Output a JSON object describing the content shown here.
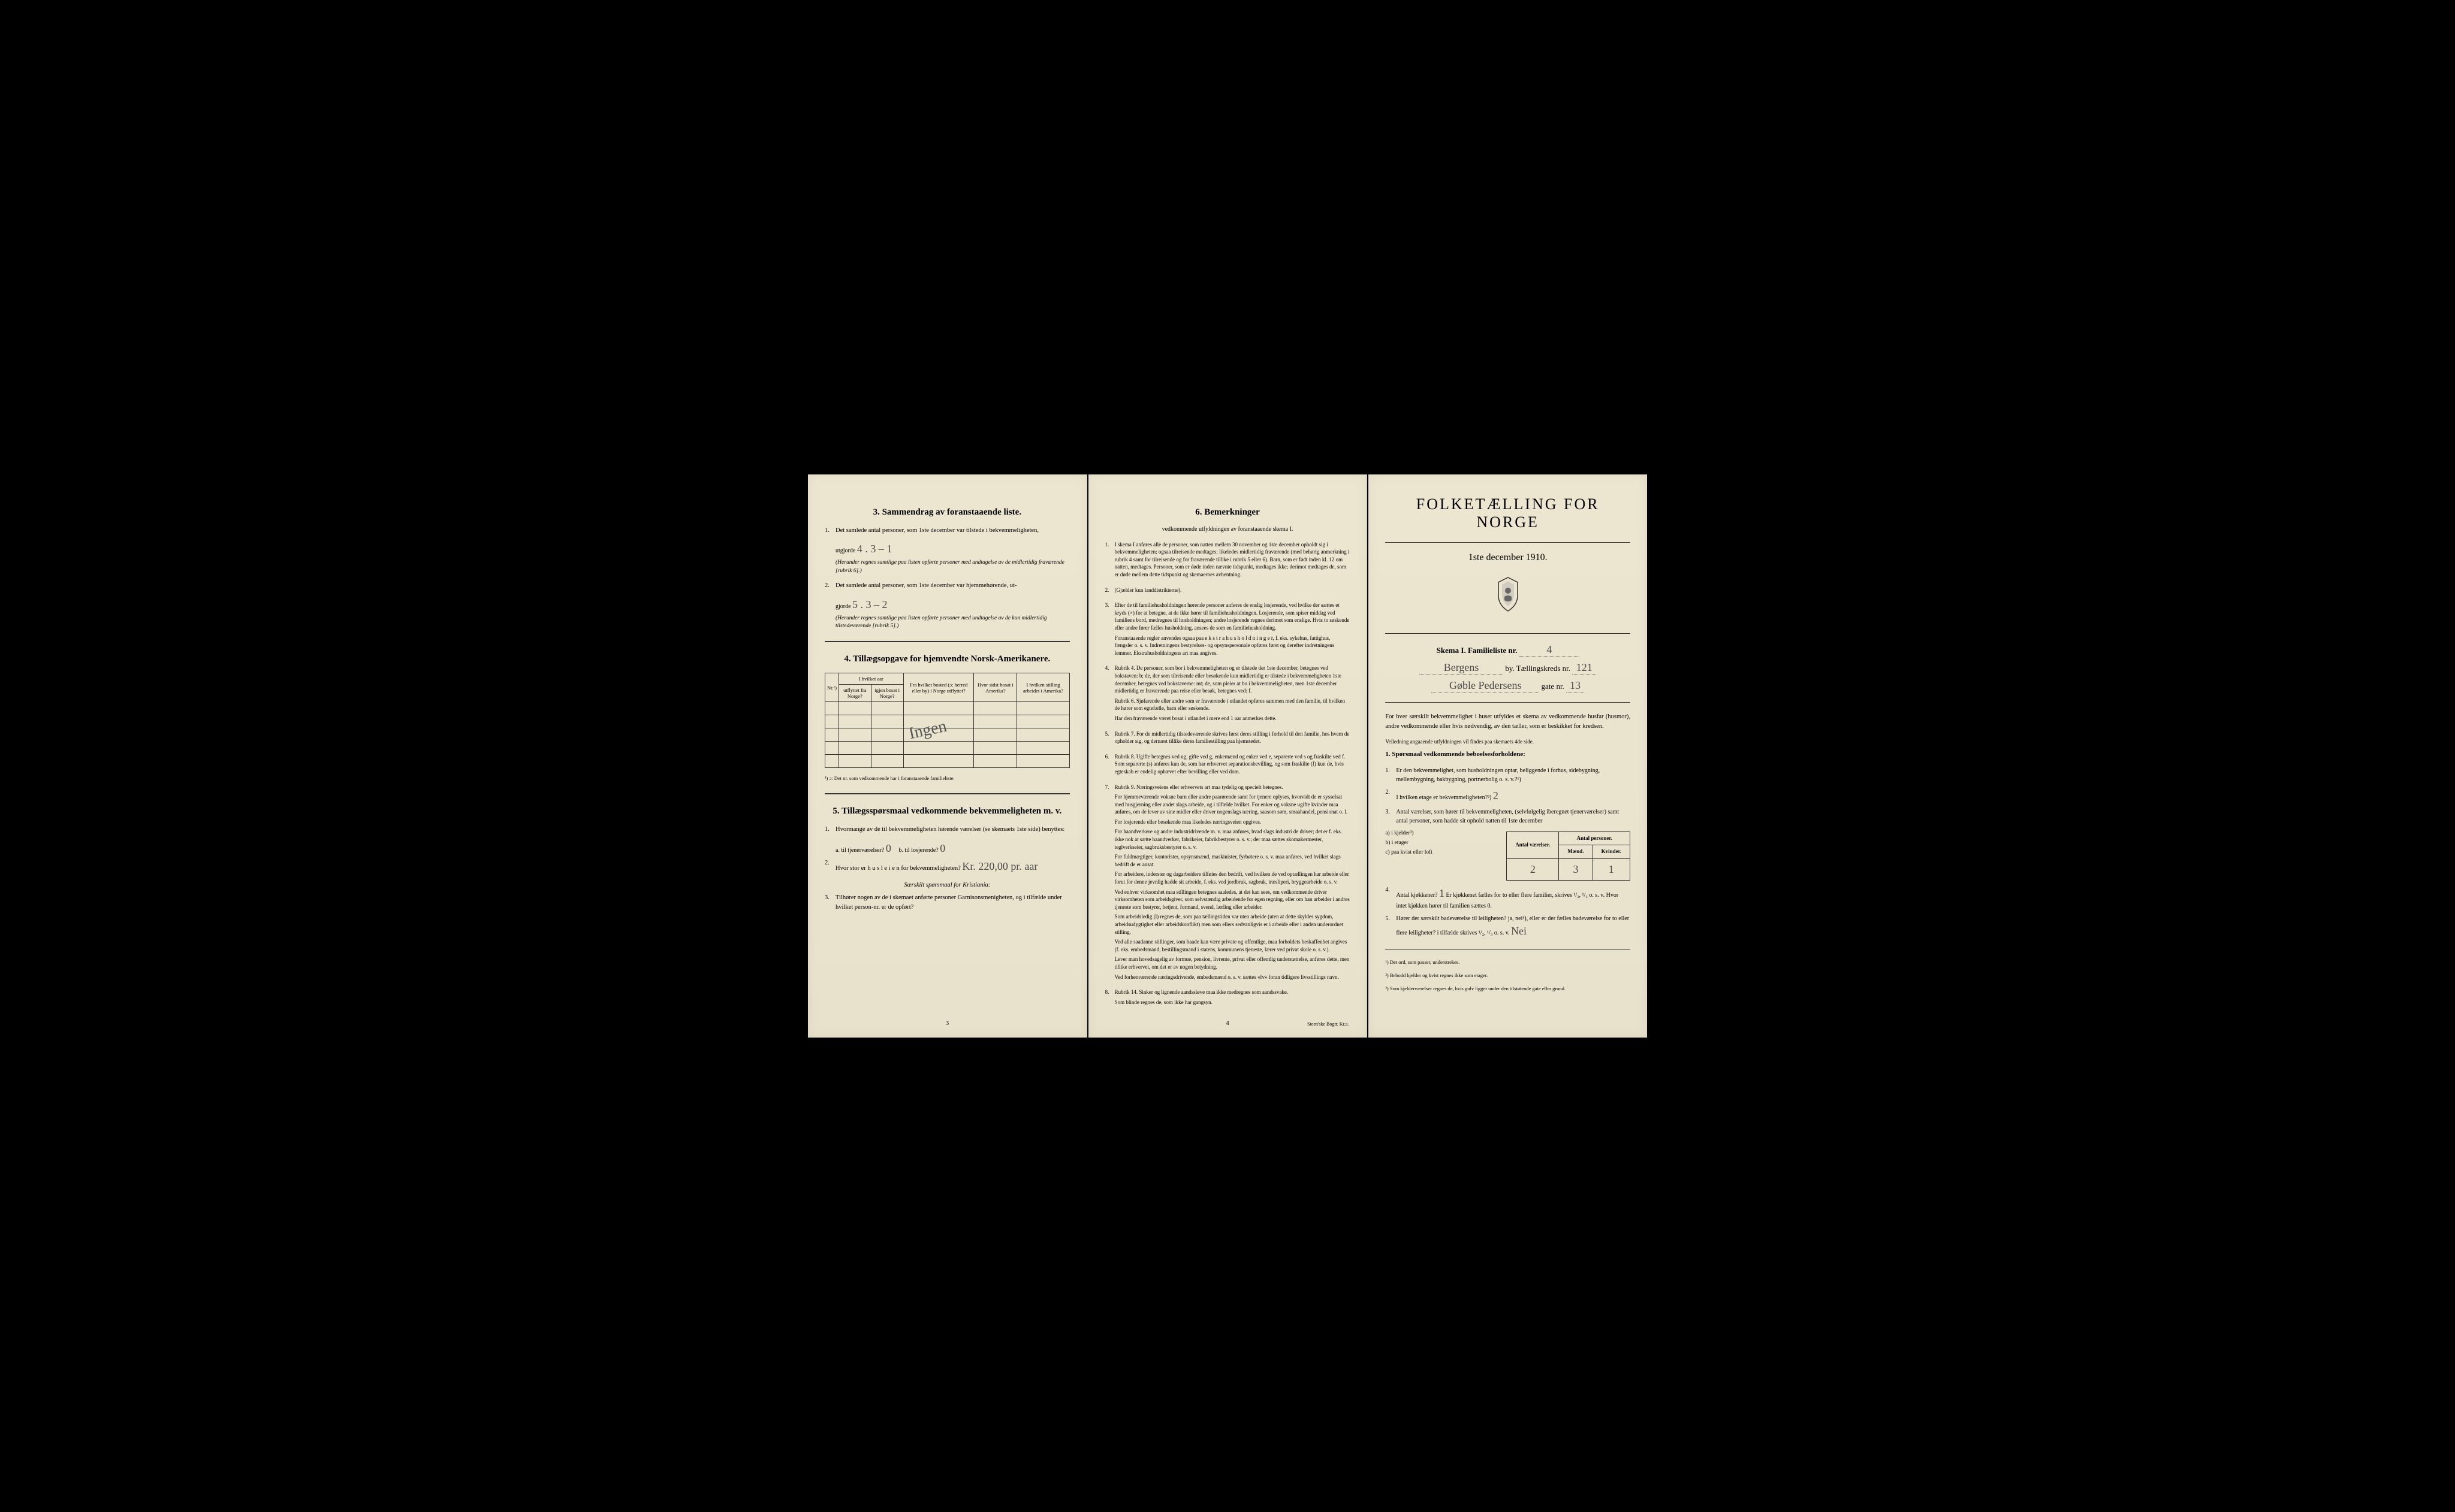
{
  "meta": {
    "page_left_num": "3",
    "page_middle_num": "4",
    "printer": "Steen'ske Bogtr. Kr.a."
  },
  "left": {
    "section3_title": "3.  Sammendrag av foranstaaende liste.",
    "item1_text": "Det samlede antal personer, som 1ste december var tilstede i bekvemmeligheten,",
    "item1_prefix": "utgjorde",
    "item1_hw": "4 .   3 – 1",
    "item1_paren": "(Herunder regnes samtlige paa listen opførte personer med undtagelse av de midlertidig fraværende [rubrik 6].)",
    "item2_text": "Det samlede antal personer, som 1ste december var hjemmehørende, ut-",
    "item2_prefix": "gjorde",
    "item2_hw": "5 .   3 – 2",
    "item2_paren": "(Herunder regnes samtlige paa listen opførte personer med undtagelse av de kun midlertidig tilstedeværende [rubrik 5].)",
    "section4_title": "4.  Tillægsopgave for hjemvendte Norsk-Amerikanere.",
    "table4": {
      "head_nr": "Nr.¹)",
      "head_group": "I hvilket aar",
      "head_utflyttet": "utflyttet fra Norge?",
      "head_igjen": "igjen bosat i Norge?",
      "head_bosted": "Fra hvilket bosted (ɔ: herred eller by) i Norge utflyttet?",
      "head_sist": "Hvor sidst bosat i Amerika?",
      "head_stilling": "I hvilken stilling arbeidet i Amerika?"
    },
    "table4_hw_diag": "Ingen",
    "footnote4": "¹) ɔ: Det nr. som vedkommende har i foranstaaende familieliste.",
    "section5_title": "5.  Tillægsspørsmaal vedkommende bekvemmeligheten m. v.",
    "s5_item1": "Hvormange av de til bekvemmeligheten hørende værelser (se skemaets 1ste side) benyttes:",
    "s5_item1a_label": "a. til tjenerværelser?",
    "s5_item1a_hw": "0",
    "s5_item1b_label": "b. til losjerende?",
    "s5_item1b_hw": "0",
    "s5_item2": "Hvor stor er h u s l e i e n for bekvemmeligheten?",
    "s5_item2_hw": "Kr. 220,00 pr. aar",
    "s5_italic": "Særskilt spørsmaal for Kristiania:",
    "s5_item3": "Tilhører nogen av de i skemaet anførte personer Garnisonsmenigheten, og i tilfælde under hvilket person-nr. er de opført?"
  },
  "middle": {
    "title": "6.  Bemerkninger",
    "subtitle": "vedkommende utfyldningen av foranstaaende skema I.",
    "items": [
      {
        "n": "1.",
        "t": "I skema I anføres alle de personer, som natten mellem 30 november og 1ste december opholdt sig i bekvemmeligheten; ogsaa tilreisende medtages; likeledes midlertidig fraværende (med behørig anmerkning i rubrik 4 samt for tilreisende og for fraværende tillike i rubrik 5 eller 6). Barn, som er født inden kl. 12 om natten, medtages. Personer, som er døde inden nævnte tidspunkt, medtages ikke; derimot medtages de, som er døde mellem dette tidspunkt og skemaernes avhentning."
      },
      {
        "n": "2.",
        "t": "(Gjælder kun landdistrikterne)."
      },
      {
        "n": "3.",
        "t": "Efter de til familiehusholdningen hørende personer anføres de enslig losjerende, ved hvilke der sættes et kryds (×) for at betegne, at de ikke hører til familiehusholdningen. Losjerende, som spiser middag ved familiens bord, medregnes til husholdningen; andre losjerende regnes derimot som enslige. Hvis to søskende eller andre fører fælles husholdning, ansees de som en familiehusholdning.",
        "extra": "Foranstaaende regler anvendes ogsaa paa e k s t r a h u s h o l d n i n g e r, f. eks. sykehus, fattighus, fængsler o. s. v. Indretningens bestyrelses- og opsynspersonale opføres først og derefter indretningens lemmer. Ekstrahusholdningens art maa angives."
      },
      {
        "n": "4.",
        "t": "Rubrik 4. De personer, som bor i bekvemmeligheten og er tilstede der 1ste december, betegnes ved bokstaven: b; de, der som tilreisende eller besøkende kun midlertidig er tilstede i bekvemmeligheten 1ste december, betegnes ved bokstaverne: mt; de, som pleier at bo i bekvemmeligheten, men 1ste december midlertidig er fraværende paa reise eller besøk, betegnes ved: f.",
        "extra": "Rubrik 6. Sjøfarende eller andre som er fraværende i utlandet opføres sammen med den familie, til hvilken de hører som egtefælle, barn eller søskende.",
        "extra2": "Har den fraværende været bosat i utlandet i mere end 1 aar anmerkes dette."
      },
      {
        "n": "5.",
        "t": "Rubrik 7. For de midlertidig tilstedeværende skrives først deres stilling i forhold til den familie, hos hvem de opholder sig, og dernæst tillike deres familiestilling paa hjemstedet."
      },
      {
        "n": "6.",
        "t": "Rubrik 8. Ugifte betegnes ved ug, gifte ved g, enkemænd og enker ved e, separerte ved s og fraskilte ved f. Som separerte (s) anføres kun de, som har erhvervet separationsbevilling, og som fraskilte (f) kun de, hvis egteskab er endelig ophævet efter bevilling eller ved dom."
      },
      {
        "n": "7.",
        "t": "Rubrik 9. Næringsveiens eller erhvervets art maa tydelig og specielt betegnes.",
        "extras": [
          "For hjemmeværende voksne barn eller andre paarørende samt for tjenere oplyses, hvorvidt de er sysselsat med husgjerning eller andet slags arbeide, og i tilfælde hvilket. For enker og voksne ugifte kvinder maa anføres, om de lever av sine midler eller driver nogenslags næring, saasom søm, smaahandel, pensionat o. l.",
          "For losjerende eller besøkende maa likeledes næringsveien opgives.",
          "For haandverkere og andre industridrivende m. v. maa anføres, hvad slags industri de driver; det er f. eks. ikke nok at sætte haandverker, fabrikeier, fabrikbestyrer o. s. v.; der maa sættes skomakermester, teglverkseier, sagbruksbestyrer o. s. v.",
          "For fuldmægtiger, kontorister, opsynsmænd, maskinister, fyrbøtere o. s. v. maa anføres, ved hvilket slags bedrift de er ansat.",
          "For arbeidere, inderster og dagarbeidere tilføies den bedrift, ved hvilken de ved optællingen har arbeide eller forut for denne jevnlig hadde sit arbeide, f. eks. ved jordbruk, sagbruk, træsliperi, bryggearbeide o. s. v.",
          "Ved enhver virksomhet maa stillingen betegnes saaledes, at det kan sees, om vedkommende driver virksomheten som arbeidsgiver, som selvstændig arbeidende for egen regning, eller om han arbeider i andres tjeneste som bestyrer, betjent, formand, svend, lærling eller arbeider.",
          "Som arbeidsledig (l) regnes de, som paa tællingstiden var uten arbeide (uten at dette skyldes sygdom, arbeidsudygtighet eller arbeidskonflikt) men som ellers sedvanligvis er i arbeide eller i anden underordnet stilling.",
          "Ved alle saadanne stillinger, som baade kan være private og offentlige, maa forholdets beskaffenhet angives (f. eks. embedsmand, bestillingsmand i statens, kommunens tjeneste, lærer ved privat skole o. s. v.).",
          "Lever man hovedsagelig av formue, pension, livrente, privat eller offentlig understøttelse, anføres dette, men tillike erhvervet, om det er av nogen betydning.",
          "Ved forhenværende næringsdrivende, embedsmænd o. s. v. sættes «fv» foran tidligere livsstillings navn."
        ]
      },
      {
        "n": "8.",
        "t": "Rubrik 14. Sinker og lignende aandssløve maa ikke medregnes som aandssvake.",
        "extra": "Som blinde regnes de, som ikke har gangsyn."
      }
    ]
  },
  "right": {
    "main_title": "FOLKETÆLLING FOR NORGE",
    "date": "1ste december 1910.",
    "skema_label": "Skema I.   Familieliste nr.",
    "skema_hw": "4",
    "by_hw": "Bergens",
    "by_suffix": "by.  Tællingskreds nr.",
    "kreds_hw": "121",
    "gate_hw": "Gøble Pedersens",
    "gate_suffix": "gate nr.",
    "gate_nr_hw": "13",
    "intro": "For hver særskilt bekvemmelighet i huset utfyldes et skema av vedkommende husfar (husmor), andre vedkommende eller hvis nødvendig, av den tæller, som er beskikket for kredsen.",
    "veiledning": "Veiledning angaaende utfyldningen vil findes paa skemaets 4de side.",
    "sp_title": "1. Spørsmaal vedkommende beboelsesforholdene:",
    "sp_items": [
      "Er den bekvemmelighet, som husholdningen optar, beliggende i forhus, sidebygning, mellembygning, bakbygning, portnerbolig o. s. v.?¹)",
      "I hvilken etage er bekvemmeligheten?²)",
      "Antal værelser, som hører til bekvemmeligheten, (selvfølgelig iberegnet tjenerværelser) samt antal personer, som hadde sit ophold natten til 1ste december"
    ],
    "sp2_hw": "2",
    "opts": {
      "a": "a) i kjelder³)",
      "b": "b) i etager",
      "c": "c) paa kvist eller loft"
    },
    "tbl": {
      "h1": "Antal værelser.",
      "h2": "Antal personer.",
      "h2a": "Mænd.",
      "h2b": "Kvinder.",
      "v_vals": [
        "",
        "2",
        ""
      ],
      "m_vals": [
        "",
        "3",
        ""
      ],
      "k_vals": [
        "",
        "1",
        ""
      ]
    },
    "sp4": "Antal kjøkkener?",
    "sp4_hw": "1",
    "sp4_rest": "Er kjøkkenet fælles for to eller flere familier, skrives ¹/₂, ¹/₃ o. s. v.  Hvor intet kjøkken hører til familien sættes 0.",
    "sp5": "Hører der særskilt badeværelse til leiligheten?  ja, nei¹), eller er der fælles badeværelse for to eller flere leiligheter?  i tilfælde skrives ¹/₂, ¹/₃ o. s. v.",
    "sp5_hw": "Nei",
    "footnotes": [
      "¹) Det ord, som passer, understrekes.",
      "²) Bebodd kjelder og kvist regnes ikke som etager.",
      "³) Som kjelderværelser regnes de, hvis gulv ligger under den tilstøtende gate eller grund."
    ]
  }
}
